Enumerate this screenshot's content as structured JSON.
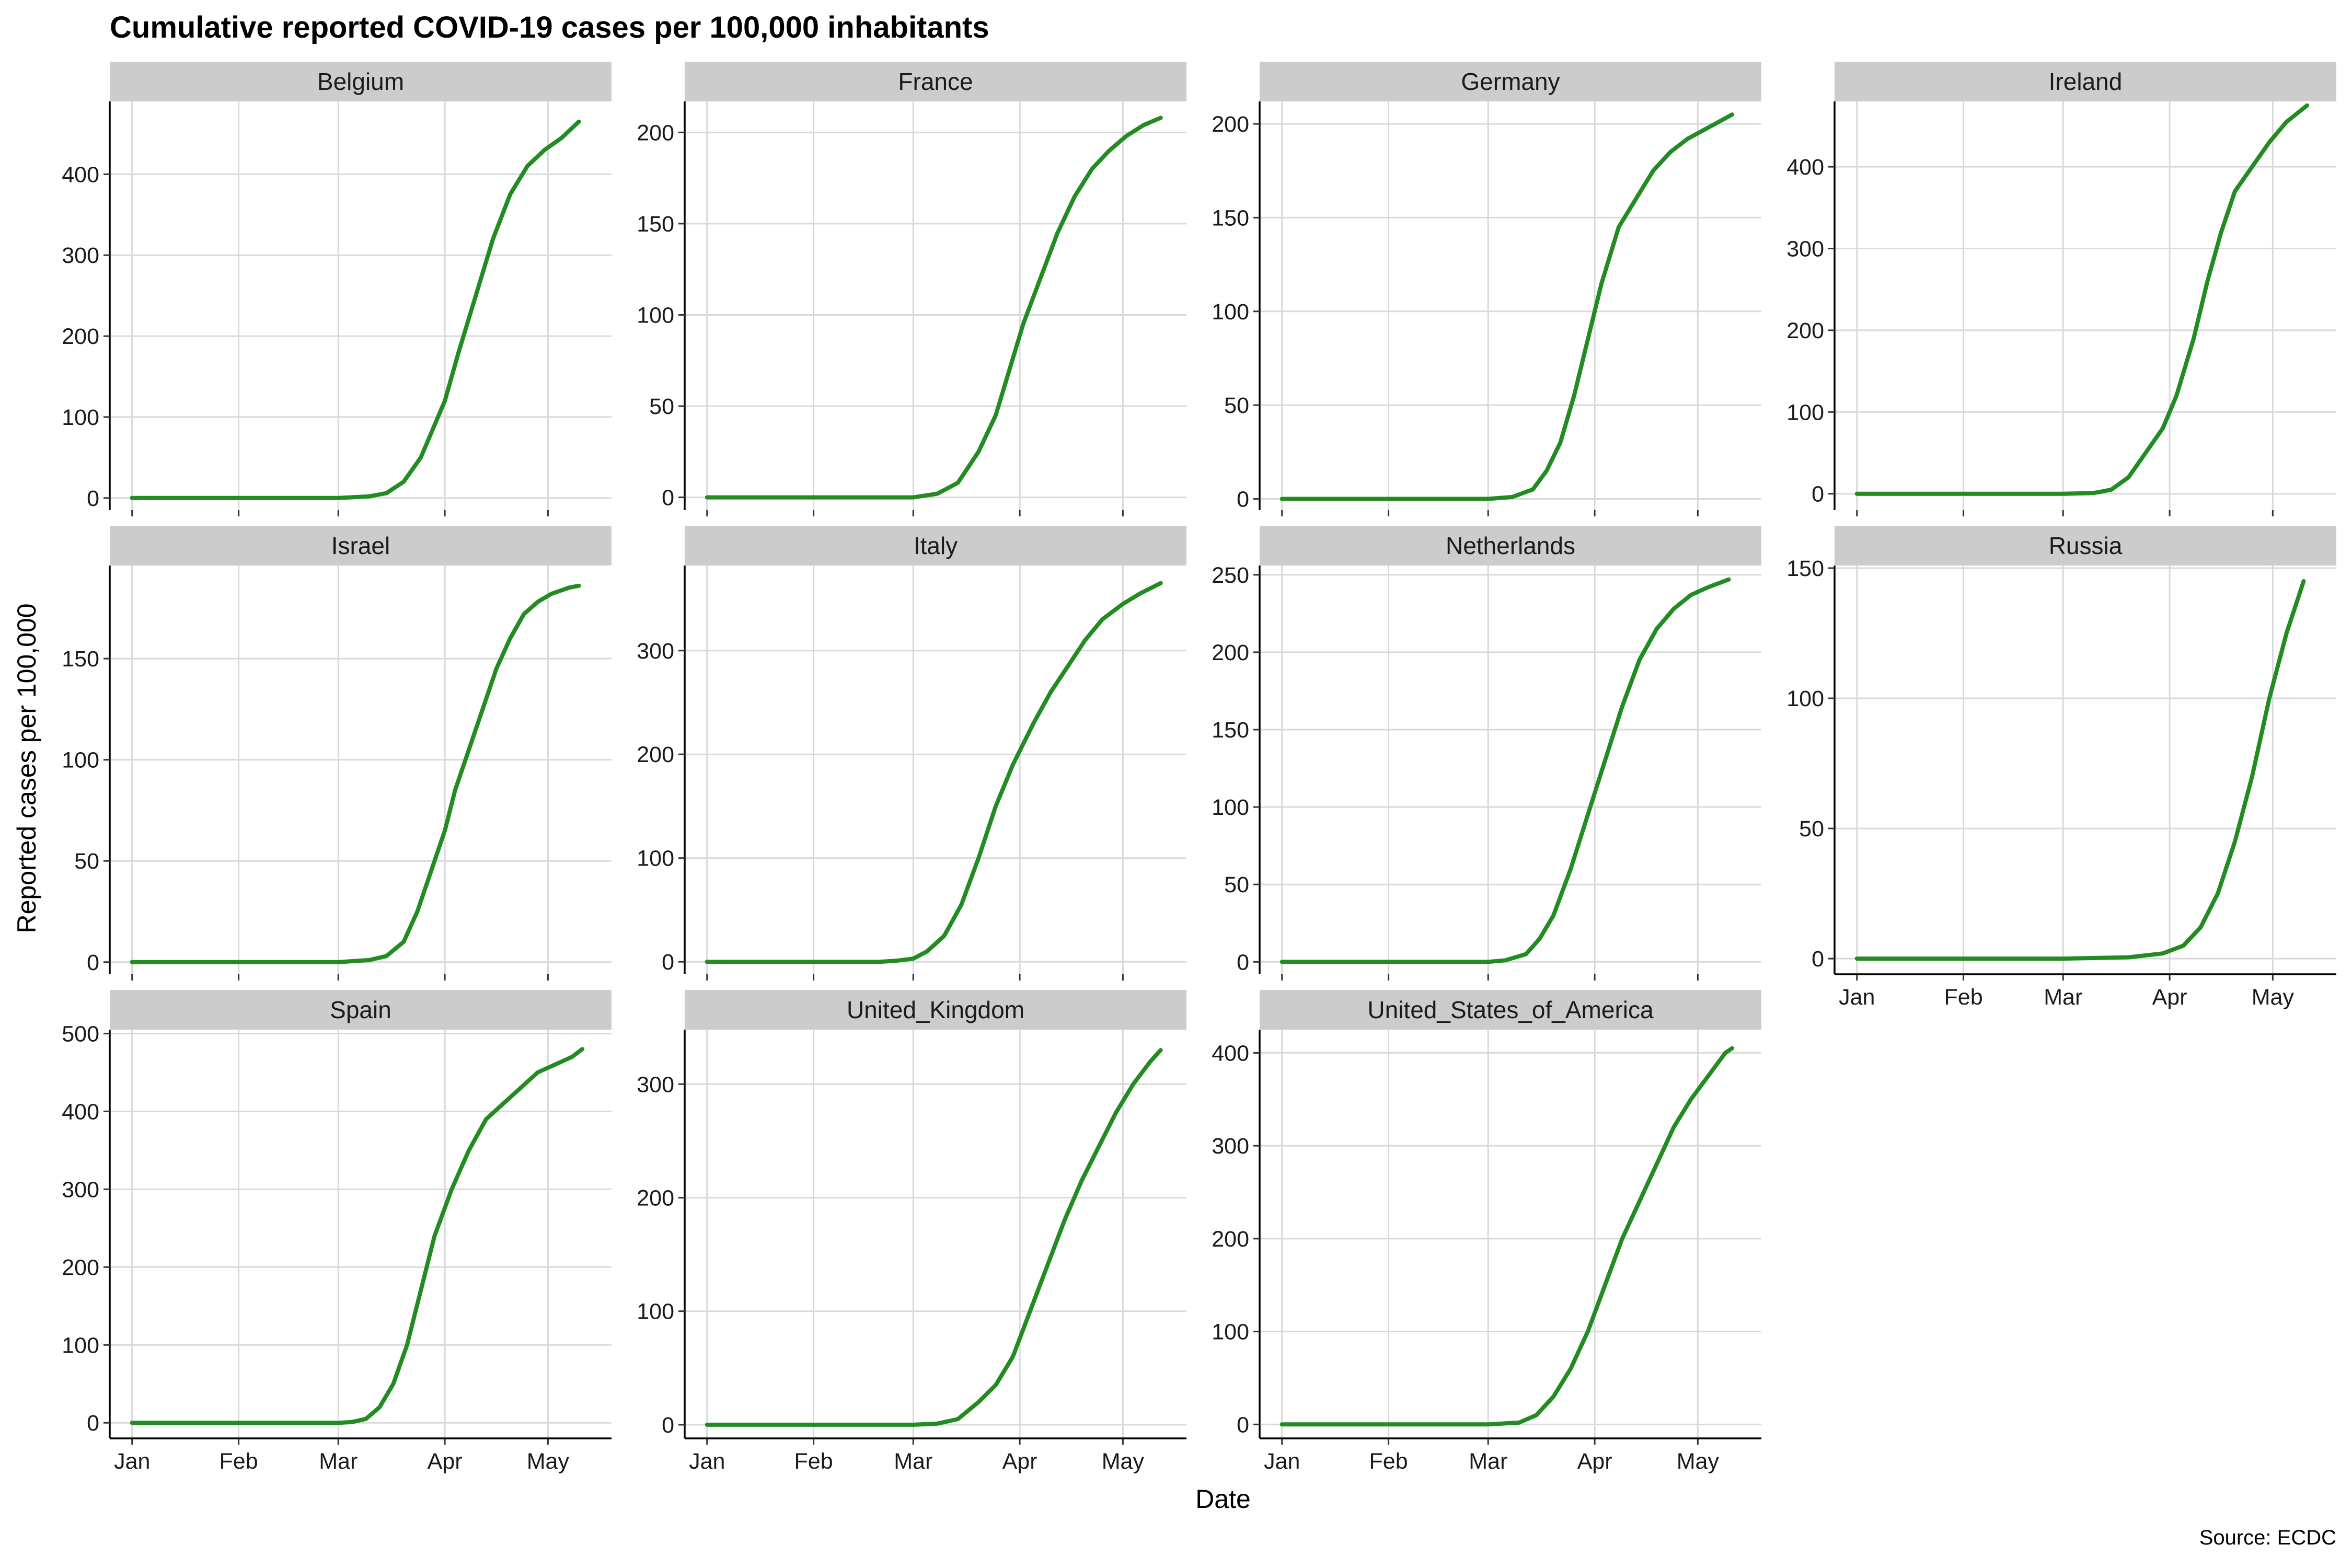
{
  "chart_data": {
    "type": "line",
    "title": "Cumulative reported COVID-19 cases per 100,000 inhabitants",
    "xlabel": "Date",
    "ylabel": "Reported cases per 100,000",
    "caption": "Source: ECDC",
    "x_range": [
      "2020-01-01",
      "2020-05-13"
    ],
    "x_ticks": [
      {
        "date": "2020-01-01",
        "label": "Jan"
      },
      {
        "date": "2020-02-01",
        "label": "Feb"
      },
      {
        "date": "2020-03-01",
        "label": "Mar"
      },
      {
        "date": "2020-04-01",
        "label": "Apr"
      },
      {
        "date": "2020-05-01",
        "label": "May"
      }
    ],
    "grid": true,
    "line_color": "#228B22",
    "panels": [
      {
        "name": "Belgium",
        "ylim": [
          -15,
          490
        ],
        "yticks": [
          0,
          100,
          200,
          300,
          400
        ],
        "points": [
          [
            "2020-01-01",
            0
          ],
          [
            "2020-03-01",
            0
          ],
          [
            "2020-03-10",
            2
          ],
          [
            "2020-03-15",
            6
          ],
          [
            "2020-03-20",
            20
          ],
          [
            "2020-03-25",
            50
          ],
          [
            "2020-03-28",
            80
          ],
          [
            "2020-04-01",
            120
          ],
          [
            "2020-04-05",
            180
          ],
          [
            "2020-04-10",
            250
          ],
          [
            "2020-04-15",
            320
          ],
          [
            "2020-04-20",
            375
          ],
          [
            "2020-04-25",
            410
          ],
          [
            "2020-04-30",
            430
          ],
          [
            "2020-05-05",
            445
          ],
          [
            "2020-05-10",
            465
          ]
        ]
      },
      {
        "name": "France",
        "ylim": [
          -7,
          217
        ],
        "yticks": [
          0,
          50,
          100,
          150,
          200
        ],
        "points": [
          [
            "2020-01-01",
            0
          ],
          [
            "2020-03-01",
            0
          ],
          [
            "2020-03-08",
            2
          ],
          [
            "2020-03-14",
            8
          ],
          [
            "2020-03-20",
            25
          ],
          [
            "2020-03-25",
            45
          ],
          [
            "2020-03-29",
            70
          ],
          [
            "2020-04-02",
            95
          ],
          [
            "2020-04-07",
            120
          ],
          [
            "2020-04-12",
            145
          ],
          [
            "2020-04-17",
            165
          ],
          [
            "2020-04-22",
            180
          ],
          [
            "2020-04-27",
            190
          ],
          [
            "2020-05-02",
            198
          ],
          [
            "2020-05-07",
            204
          ],
          [
            "2020-05-12",
            208
          ]
        ]
      },
      {
        "name": "Germany",
        "ylim": [
          -6,
          212
        ],
        "yticks": [
          0,
          50,
          100,
          150,
          200
        ],
        "points": [
          [
            "2020-01-01",
            0
          ],
          [
            "2020-03-01",
            0
          ],
          [
            "2020-03-08",
            1
          ],
          [
            "2020-03-14",
            5
          ],
          [
            "2020-03-18",
            15
          ],
          [
            "2020-03-22",
            30
          ],
          [
            "2020-03-26",
            55
          ],
          [
            "2020-03-30",
            85
          ],
          [
            "2020-04-03",
            115
          ],
          [
            "2020-04-08",
            145
          ],
          [
            "2020-04-13",
            160
          ],
          [
            "2020-04-18",
            175
          ],
          [
            "2020-04-23",
            185
          ],
          [
            "2020-04-28",
            192
          ],
          [
            "2020-05-03",
            197
          ],
          [
            "2020-05-08",
            202
          ],
          [
            "2020-05-11",
            205
          ]
        ]
      },
      {
        "name": "Ireland",
        "ylim": [
          -20,
          480
        ],
        "yticks": [
          0,
          100,
          200,
          300,
          400
        ],
        "points": [
          [
            "2020-01-01",
            0
          ],
          [
            "2020-03-01",
            0
          ],
          [
            "2020-03-10",
            1
          ],
          [
            "2020-03-15",
            5
          ],
          [
            "2020-03-20",
            20
          ],
          [
            "2020-03-25",
            50
          ],
          [
            "2020-03-30",
            80
          ],
          [
            "2020-04-03",
            120
          ],
          [
            "2020-04-08",
            190
          ],
          [
            "2020-04-12",
            260
          ],
          [
            "2020-04-16",
            320
          ],
          [
            "2020-04-20",
            370
          ],
          [
            "2020-04-25",
            400
          ],
          [
            "2020-04-30",
            430
          ],
          [
            "2020-05-05",
            455
          ],
          [
            "2020-05-11",
            475
          ]
        ]
      },
      {
        "name": "Israel",
        "ylim": [
          -6,
          196
        ],
        "yticks": [
          0,
          50,
          100,
          150
        ],
        "points": [
          [
            "2020-01-01",
            0
          ],
          [
            "2020-03-01",
            0
          ],
          [
            "2020-03-10",
            1
          ],
          [
            "2020-03-15",
            3
          ],
          [
            "2020-03-20",
            10
          ],
          [
            "2020-03-24",
            25
          ],
          [
            "2020-03-28",
            45
          ],
          [
            "2020-04-01",
            65
          ],
          [
            "2020-04-04",
            85
          ],
          [
            "2020-04-08",
            105
          ],
          [
            "2020-04-12",
            125
          ],
          [
            "2020-04-16",
            145
          ],
          [
            "2020-04-20",
            160
          ],
          [
            "2020-04-24",
            172
          ],
          [
            "2020-04-28",
            178
          ],
          [
            "2020-05-02",
            182
          ],
          [
            "2020-05-07",
            185
          ],
          [
            "2020-05-10",
            186
          ]
        ]
      },
      {
        "name": "Italy",
        "ylim": [
          -12,
          382
        ],
        "yticks": [
          0,
          100,
          200,
          300
        ],
        "points": [
          [
            "2020-01-01",
            0
          ],
          [
            "2020-02-20",
            0
          ],
          [
            "2020-02-25",
            1
          ],
          [
            "2020-03-01",
            3
          ],
          [
            "2020-03-05",
            10
          ],
          [
            "2020-03-10",
            25
          ],
          [
            "2020-03-15",
            55
          ],
          [
            "2020-03-20",
            100
          ],
          [
            "2020-03-25",
            150
          ],
          [
            "2020-03-30",
            190
          ],
          [
            "2020-04-05",
            230
          ],
          [
            "2020-04-10",
            260
          ],
          [
            "2020-04-15",
            285
          ],
          [
            "2020-04-20",
            310
          ],
          [
            "2020-04-25",
            330
          ],
          [
            "2020-05-01",
            345
          ],
          [
            "2020-05-06",
            355
          ],
          [
            "2020-05-12",
            365
          ]
        ]
      },
      {
        "name": "Netherlands",
        "ylim": [
          -8,
          256
        ],
        "yticks": [
          0,
          50,
          100,
          150,
          200,
          250
        ],
        "points": [
          [
            "2020-01-01",
            0
          ],
          [
            "2020-03-01",
            0
          ],
          [
            "2020-03-06",
            1
          ],
          [
            "2020-03-12",
            5
          ],
          [
            "2020-03-16",
            15
          ],
          [
            "2020-03-20",
            30
          ],
          [
            "2020-03-25",
            60
          ],
          [
            "2020-03-30",
            95
          ],
          [
            "2020-04-04",
            130
          ],
          [
            "2020-04-09",
            165
          ],
          [
            "2020-04-14",
            195
          ],
          [
            "2020-04-19",
            215
          ],
          [
            "2020-04-24",
            228
          ],
          [
            "2020-04-29",
            237
          ],
          [
            "2020-05-04",
            242
          ],
          [
            "2020-05-10",
            247
          ]
        ]
      },
      {
        "name": "Russia",
        "ylim": [
          -6,
          151
        ],
        "yticks": [
          0,
          50,
          100,
          150
        ],
        "points": [
          [
            "2020-01-01",
            0
          ],
          [
            "2020-03-01",
            0
          ],
          [
            "2020-03-20",
            0.5
          ],
          [
            "2020-03-30",
            2
          ],
          [
            "2020-04-05",
            5
          ],
          [
            "2020-04-10",
            12
          ],
          [
            "2020-04-15",
            25
          ],
          [
            "2020-04-20",
            45
          ],
          [
            "2020-04-25",
            70
          ],
          [
            "2020-04-30",
            100
          ],
          [
            "2020-05-05",
            125
          ],
          [
            "2020-05-10",
            145
          ]
        ]
      },
      {
        "name": "Spain",
        "ylim": [
          -20,
          505
        ],
        "yticks": [
          0,
          100,
          200,
          300,
          400,
          500
        ],
        "points": [
          [
            "2020-01-01",
            0
          ],
          [
            "2020-03-01",
            0
          ],
          [
            "2020-03-05",
            1
          ],
          [
            "2020-03-09",
            5
          ],
          [
            "2020-03-13",
            20
          ],
          [
            "2020-03-17",
            50
          ],
          [
            "2020-03-21",
            100
          ],
          [
            "2020-03-25",
            170
          ],
          [
            "2020-03-29",
            240
          ],
          [
            "2020-04-03",
            300
          ],
          [
            "2020-04-08",
            350
          ],
          [
            "2020-04-13",
            390
          ],
          [
            "2020-04-18",
            410
          ],
          [
            "2020-04-23",
            430
          ],
          [
            "2020-04-28",
            450
          ],
          [
            "2020-05-03",
            460
          ],
          [
            "2020-05-08",
            470
          ],
          [
            "2020-05-11",
            480
          ]
        ]
      },
      {
        "name": "United_Kingdom",
        "ylim": [
          -12,
          348
        ],
        "yticks": [
          0,
          100,
          200,
          300
        ],
        "points": [
          [
            "2020-01-01",
            0
          ],
          [
            "2020-03-01",
            0
          ],
          [
            "2020-03-08",
            1
          ],
          [
            "2020-03-14",
            5
          ],
          [
            "2020-03-20",
            20
          ],
          [
            "2020-03-25",
            35
          ],
          [
            "2020-03-30",
            60
          ],
          [
            "2020-04-04",
            100
          ],
          [
            "2020-04-09",
            140
          ],
          [
            "2020-04-14",
            180
          ],
          [
            "2020-04-19",
            215
          ],
          [
            "2020-04-24",
            245
          ],
          [
            "2020-04-29",
            275
          ],
          [
            "2020-05-04",
            300
          ],
          [
            "2020-05-09",
            320
          ],
          [
            "2020-05-12",
            330
          ]
        ]
      },
      {
        "name": "United_States_of_America",
        "ylim": [
          -15,
          425
        ],
        "yticks": [
          0,
          100,
          200,
          300,
          400
        ],
        "points": [
          [
            "2020-01-01",
            0
          ],
          [
            "2020-03-01",
            0
          ],
          [
            "2020-03-10",
            2
          ],
          [
            "2020-03-15",
            10
          ],
          [
            "2020-03-20",
            30
          ],
          [
            "2020-03-25",
            60
          ],
          [
            "2020-03-30",
            100
          ],
          [
            "2020-04-04",
            150
          ],
          [
            "2020-04-09",
            200
          ],
          [
            "2020-04-14",
            240
          ],
          [
            "2020-04-19",
            280
          ],
          [
            "2020-04-24",
            320
          ],
          [
            "2020-04-29",
            350
          ],
          [
            "2020-05-04",
            375
          ],
          [
            "2020-05-09",
            400
          ],
          [
            "2020-05-11",
            405
          ]
        ]
      }
    ]
  }
}
